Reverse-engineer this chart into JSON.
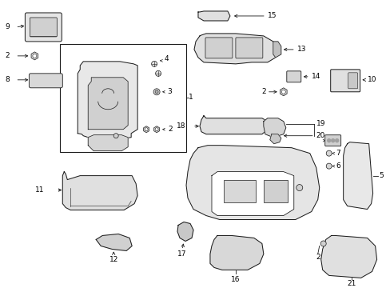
{
  "bg_color": "#ffffff",
  "line_color": "#1a1a1a",
  "text_color": "#000000",
  "fig_width": 4.89,
  "fig_height": 3.6,
  "dpi": 100,
  "lw": 0.7,
  "fs": 6.5
}
